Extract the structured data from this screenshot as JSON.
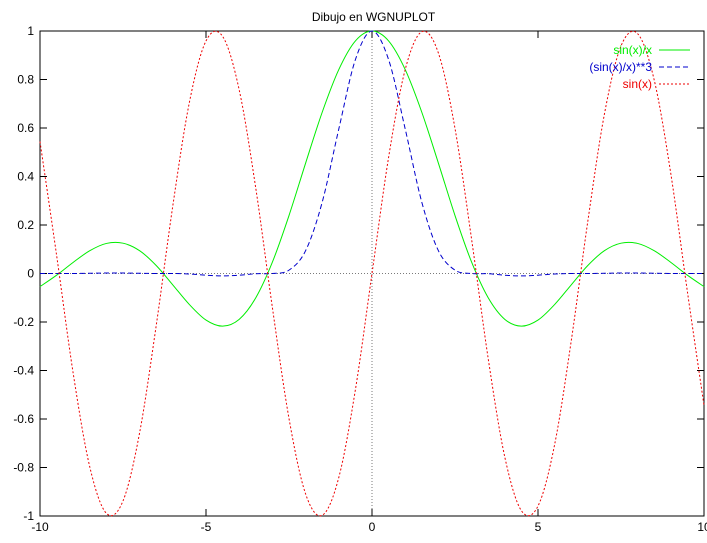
{
  "chart_data": {
    "type": "line",
    "title": "Dibujo en WGNUPLOT",
    "xlabel": "",
    "ylabel": "",
    "xlim": [
      -10,
      10
    ],
    "ylim": [
      -1,
      1
    ],
    "x_ticks": [
      -10,
      -5,
      0,
      5,
      10
    ],
    "y_ticks": [
      1,
      0.8,
      0.6,
      0.4,
      0.2,
      0,
      -0.2,
      -0.4,
      -0.6,
      -0.8,
      -1
    ],
    "x_tick_labels": [
      "-10",
      "-5",
      "0",
      "5",
      "10"
    ],
    "y_tick_labels": [
      "1",
      "0.8",
      "0.6",
      "0.4",
      "0.2",
      "0",
      "-0.2",
      "-0.4",
      "-0.6",
      "-0.8",
      "-1"
    ],
    "grid": false,
    "zero_axes": true,
    "legend_position": "top-right",
    "series": [
      {
        "name": "sin(x)/x",
        "color": "#00ee00",
        "dash": "solid",
        "x": [
          -10,
          -9.5,
          -9,
          -8.5,
          -8,
          -7.5,
          -7,
          -6.5,
          -6,
          -5.5,
          -5,
          -4.5,
          -4,
          -3.5,
          -3,
          -2.5,
          -2,
          -1.5,
          -1,
          -0.5,
          0,
          0.5,
          1,
          1.5,
          2,
          2.5,
          3,
          3.5,
          4,
          4.5,
          5,
          5.5,
          6,
          6.5,
          7,
          7.5,
          8,
          8.5,
          9,
          9.5,
          10
        ],
        "y": [
          -0.054,
          -0.007,
          0.046,
          0.094,
          0.124,
          0.125,
          0.094,
          0.033,
          -0.047,
          -0.128,
          -0.192,
          -0.217,
          -0.189,
          -0.1,
          0.047,
          0.239,
          0.455,
          0.665,
          0.841,
          0.959,
          1.0,
          0.959,
          0.841,
          0.665,
          0.455,
          0.239,
          0.047,
          -0.1,
          -0.189,
          -0.217,
          -0.192,
          -0.128,
          -0.047,
          0.033,
          0.094,
          0.125,
          0.124,
          0.094,
          0.046,
          -0.007,
          -0.054
        ]
      },
      {
        "name": "(sin(x)/x)**3",
        "color": "#0000cc",
        "dash": "5,3",
        "x": [
          -10,
          -9.5,
          -9,
          -8.5,
          -8,
          -7.5,
          -7,
          -6.5,
          -6,
          -5.5,
          -5,
          -4.5,
          -4,
          -3.5,
          -3,
          -2.5,
          -2,
          -1.5,
          -1,
          -0.5,
          0,
          0.5,
          1,
          1.5,
          2,
          2.5,
          3,
          3.5,
          4,
          4.5,
          5,
          5.5,
          6,
          6.5,
          7,
          7.5,
          8,
          8.5,
          9,
          9.5,
          10
        ],
        "y": [
          0.0,
          0.0,
          0.0,
          0.001,
          0.002,
          0.002,
          0.001,
          0.0,
          0.0,
          -0.002,
          -0.007,
          -0.01,
          -0.007,
          -0.001,
          0.0,
          0.014,
          0.094,
          0.294,
          0.596,
          0.882,
          1.0,
          0.882,
          0.596,
          0.294,
          0.094,
          0.014,
          0.0,
          -0.001,
          -0.007,
          -0.01,
          -0.007,
          -0.002,
          0.0,
          0.0,
          0.001,
          0.002,
          0.002,
          0.001,
          0.0,
          0.0,
          0.0
        ]
      },
      {
        "name": "sin(x)",
        "color": "#ee0000",
        "dash": "2,2",
        "x": [
          -10,
          -9.5,
          -9,
          -8.5,
          -8,
          -7.5,
          -7,
          -6.5,
          -6,
          -5.5,
          -5,
          -4.5,
          -4,
          -3.5,
          -3,
          -2.5,
          -2,
          -1.5,
          -1,
          -0.5,
          0,
          0.5,
          1,
          1.5,
          2,
          2.5,
          3,
          3.5,
          4,
          4.5,
          5,
          5.5,
          6,
          6.5,
          7,
          7.5,
          8,
          8.5,
          9,
          9.5,
          10
        ],
        "y": [
          0.544,
          0.075,
          -0.412,
          -0.798,
          -0.989,
          -0.938,
          -0.657,
          -0.215,
          0.279,
          0.706,
          0.959,
          0.978,
          0.757,
          0.351,
          -0.141,
          -0.598,
          -0.909,
          -0.997,
          -0.841,
          -0.479,
          0.0,
          0.479,
          0.841,
          0.997,
          0.909,
          0.598,
          0.141,
          -0.351,
          -0.757,
          -0.978,
          -0.959,
          -0.706,
          -0.279,
          0.215,
          0.657,
          0.938,
          0.989,
          0.798,
          0.412,
          -0.075,
          -0.544
        ]
      }
    ]
  }
}
